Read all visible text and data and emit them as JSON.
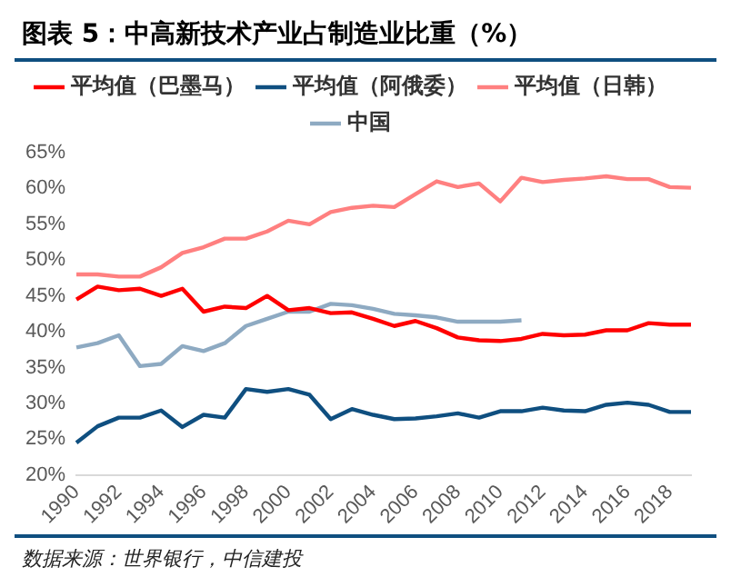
{
  "chart_data": {
    "type": "line",
    "title": "图表 5：中高新技术产业占制造业比重（%）",
    "annotations": [
      "数据来源：世界银行，中信建投"
    ],
    "categories": [
      "1990",
      null,
      "1992",
      null,
      "1994",
      null,
      "1996",
      null,
      "1998",
      null,
      "2000",
      null,
      "2002",
      null,
      "2004",
      null,
      "2006",
      null,
      "2008",
      null,
      "2010",
      null,
      "2012",
      null,
      "2014",
      null,
      "2016",
      null,
      "2018",
      null
    ],
    "series": [
      {
        "name": "平均值（巴墨马）",
        "color": "#ff0000",
        "values": [
          44.5,
          46.3,
          45.8,
          46,
          45,
          46,
          42.8,
          43.5,
          43.3,
          45,
          43,
          43.3,
          42.6,
          42.7,
          41.8,
          40.8,
          41.5,
          40.5,
          39.2,
          38.8,
          38.7,
          39,
          39.7,
          39.5,
          39.6,
          40.2,
          40.2,
          41.2,
          41,
          41
        ]
      },
      {
        "name": "平均值（阿俄委）",
        "color": "#0f4f80",
        "values": [
          24.5,
          26.8,
          28,
          28,
          29,
          26.7,
          28.4,
          28,
          32,
          31.6,
          32,
          31.2,
          27.8,
          29.2,
          28.4,
          27.8,
          27.9,
          28.2,
          28.6,
          28,
          28.9,
          28.9,
          29.4,
          29,
          28.9,
          29.8,
          30.1,
          29.8,
          28.8,
          28.8
        ]
      },
      {
        "name": "平均值（日韩）",
        "color": "#ff8080",
        "values": [
          48,
          48,
          47.7,
          47.7,
          49,
          51,
          51.8,
          53,
          53,
          54,
          55.5,
          55,
          56.7,
          57.3,
          57.6,
          57.4,
          59.2,
          61,
          60.2,
          60.7,
          58.2,
          61.5,
          60.9,
          61.2,
          61.4,
          61.7,
          61.3,
          61.3,
          60.2,
          60.1
        ]
      },
      {
        "name": "中国",
        "color": "#8eaac2",
        "values": [
          37.8,
          38.4,
          39.5,
          35.2,
          35.5,
          38,
          37.3,
          38.4,
          40.8,
          41.8,
          42.8,
          42.8,
          43.9,
          43.7,
          43.2,
          42.5,
          42.3,
          42,
          41.4,
          41.4,
          41.4,
          41.6,
          null,
          null,
          null,
          null,
          null,
          null,
          null,
          null
        ]
      }
    ],
    "ylim": [
      20,
      65
    ],
    "yticks": [
      {
        "value": 20,
        "label": "20%"
      },
      {
        "value": 25,
        "label": "25%"
      },
      {
        "value": 30,
        "label": "30%"
      },
      {
        "value": 35,
        "label": "35%"
      },
      {
        "value": 40,
        "label": "40%"
      },
      {
        "value": 45,
        "label": "45%"
      },
      {
        "value": 50,
        "label": "50%"
      },
      {
        "value": 55,
        "label": "55%"
      },
      {
        "value": 60,
        "label": "60%"
      },
      {
        "value": 65,
        "label": "65%"
      }
    ],
    "grid": false,
    "legend": "top",
    "marker": "none",
    "line_style": "solid"
  }
}
